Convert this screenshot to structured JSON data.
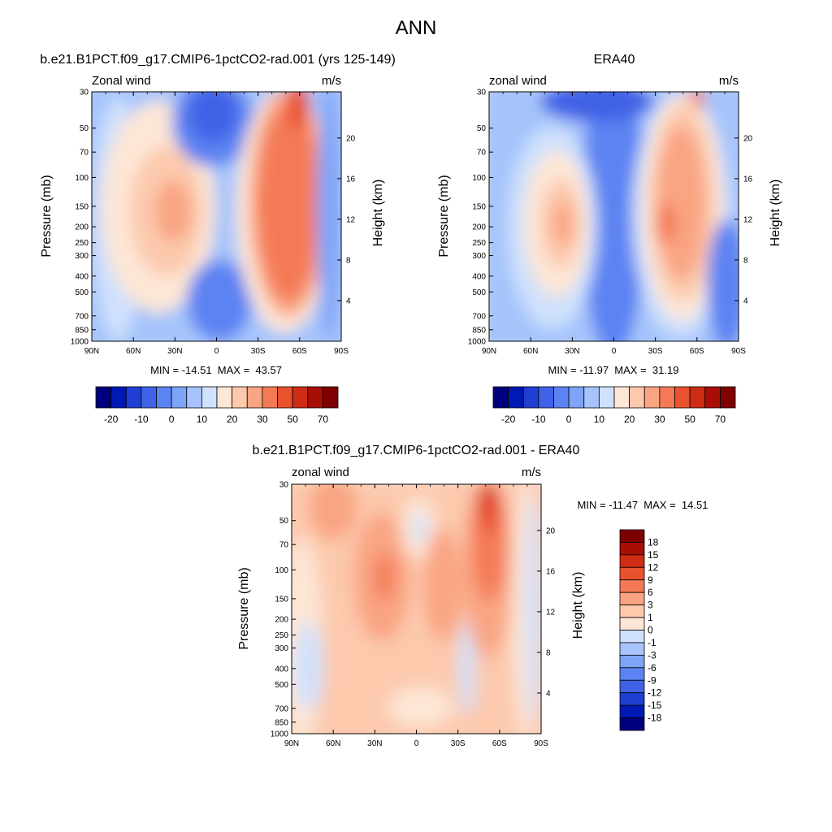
{
  "figure": {
    "main_title": "ANN"
  },
  "colors": {
    "full_field": [
      "#00007f",
      "#0018b4",
      "#1f3ed2",
      "#3f62e6",
      "#5c83f2",
      "#7ea4f8",
      "#a6c4fb",
      "#cfe1fc",
      "#fde6d6",
      "#fcc9ad",
      "#f9a482",
      "#f47a56",
      "#e9512f",
      "#cf2c14",
      "#a80e05",
      "#7f0000"
    ],
    "difference": [
      "#00007f",
      "#0018b4",
      "#1f3ed2",
      "#3f62e6",
      "#5c83f2",
      "#7ea4f8",
      "#a6c4fb",
      "#cfe1fc",
      "#fde6d6",
      "#fcc9ad",
      "#f9a482",
      "#f47a56",
      "#e9512f",
      "#cf2c14",
      "#a80e05",
      "#7f0000"
    ]
  },
  "chart_data": [
    {
      "type": "heatmap",
      "title": "b.e21.B1PCT.f09_g17.CMIP6-1pctCO2-rad.001 (yrs 125-149)",
      "variable_label": "Zonal wind",
      "units": "m/s",
      "ylabel": "Pressure (mb)",
      "ylabel_right": "Height (km)",
      "x_ticks": [
        "90N",
        "60N",
        "30N",
        "0",
        "30S",
        "60S",
        "90S"
      ],
      "y_ticks": [
        30,
        50,
        70,
        100,
        150,
        200,
        250,
        300,
        400,
        500,
        700,
        850,
        1000
      ],
      "y_ticks_right": [
        20,
        16,
        12,
        8,
        4
      ],
      "ylim": [
        1000,
        30
      ],
      "y_scale": "log",
      "stats": "MIN = -14.51  MAX =  43.57",
      "colorbar": {
        "orientation": "horizontal",
        "tick_labels": [
          "-20",
          "-10",
          "0",
          "10",
          "20",
          "30",
          "50",
          "70"
        ]
      },
      "features": [
        {
          "lat": -53,
          "p": 180,
          "value": 40
        },
        {
          "lat": -43,
          "p": 45,
          "value": 36
        },
        {
          "lat": 28,
          "p": 180,
          "value": 22
        },
        {
          "lat": -8,
          "p": 50,
          "value": -10
        },
        {
          "lat": 8,
          "p": 600,
          "value": -6
        }
      ]
    },
    {
      "type": "heatmap",
      "title": "ERA40",
      "variable_label": "zonal wind",
      "units": "m/s",
      "ylabel": "Pressure (mb)",
      "ylabel_right": "Height (km)",
      "x_ticks": [
        "90N",
        "60N",
        "30N",
        "0",
        "30S",
        "60S",
        "90S"
      ],
      "y_ticks": [
        30,
        50,
        70,
        100,
        150,
        200,
        250,
        300,
        400,
        500,
        700,
        850,
        1000
      ],
      "y_ticks_right": [
        20,
        16,
        12,
        8,
        4
      ],
      "ylim": [
        1000,
        30
      ],
      "y_scale": "log",
      "stats": "MIN = -11.97  MAX =  31.19",
      "colorbar": {
        "orientation": "horizontal",
        "tick_labels": [
          "-20",
          "-10",
          "0",
          "10",
          "20",
          "30",
          "50",
          "70"
        ]
      },
      "features": [
        {
          "lat": -32,
          "p": 200,
          "value": 31
        },
        {
          "lat": 30,
          "p": 200,
          "value": 22
        },
        {
          "lat": -5,
          "p": 50,
          "value": -11
        },
        {
          "lat": -60,
          "p": 30,
          "value": 28
        }
      ]
    },
    {
      "type": "heatmap",
      "title": "b.e21.B1PCT.f09_g17.CMIP6-1pctCO2-rad.001 - ERA40",
      "variable_label": "zonal wind",
      "units": "m/s",
      "ylabel": "Pressure (mb)",
      "ylabel_right": "Height (km)",
      "x_ticks": [
        "90N",
        "60N",
        "30N",
        "0",
        "30S",
        "60S",
        "90S"
      ],
      "y_ticks": [
        30,
        50,
        70,
        100,
        150,
        200,
        250,
        300,
        400,
        500,
        700,
        850,
        1000
      ],
      "y_ticks_right": [
        20,
        16,
        12,
        8,
        4
      ],
      "ylim": [
        1000,
        30
      ],
      "y_scale": "log",
      "stats": "MIN = -11.47  MAX =  14.51",
      "colorbar": {
        "orientation": "vertical",
        "tick_labels": [
          "18",
          "15",
          "12",
          "9",
          "6",
          "3",
          "1",
          "0",
          "-1",
          "-3",
          "-6",
          "-9",
          "-12",
          "-15",
          "-18"
        ]
      },
      "features": [
        {
          "lat": -50,
          "p": 40,
          "value": 14
        },
        {
          "lat": 22,
          "p": 100,
          "value": 11
        },
        {
          "lat": -10,
          "p": 60,
          "value": -2
        },
        {
          "lat": 75,
          "p": 400,
          "value": -2
        },
        {
          "lat": -37,
          "p": 400,
          "value": -2
        }
      ]
    }
  ]
}
